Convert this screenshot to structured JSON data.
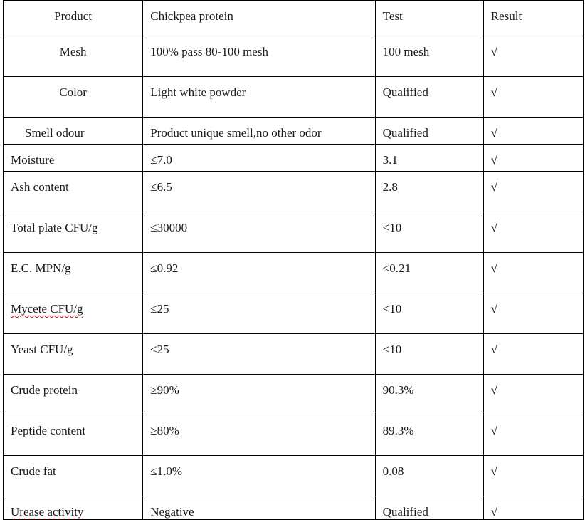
{
  "table": {
    "headers": [
      "Product",
      "Chickpea protein",
      "Test",
      "Result"
    ],
    "rows": [
      {
        "item": "Mesh",
        "spec": "100% pass 80-100 mesh",
        "test": "100 mesh",
        "result": "√"
      },
      {
        "item": "Color",
        "spec": "Light white powder",
        "test": "Qualified",
        "result": "√"
      },
      {
        "item": "Smell odour",
        "spec": "Product unique smell,no other odor",
        "test": "Qualified",
        "result": "√"
      },
      {
        "item": "Moisture",
        "spec": "≤7.0",
        "test": "3.1",
        "result": "√"
      },
      {
        "item": "Ash content",
        "spec": "≤6.5",
        "test": "2.8",
        "result": "√"
      },
      {
        "item": "Total plate CFU/g",
        "spec": "≤30000",
        "test": "<10",
        "result": "√"
      },
      {
        "item": "E.C. MPN/g",
        "spec": "≤0.92",
        "test": "<0.21",
        "result": "√"
      },
      {
        "item": "Mycete CFU/g",
        "spec": "≤25",
        "test": "<10",
        "result": "√"
      },
      {
        "item": "Yeast CFU/g",
        "spec": "≤25",
        "test": "<10",
        "result": "√"
      },
      {
        "item": "Crude protein",
        "spec": "≥90%",
        "test": "90.3%",
        "result": "√"
      },
      {
        "item": "Peptide content",
        "spec": "≥80%",
        "test": "89.3%",
        "result": "√"
      },
      {
        "item": "Crude fat",
        "spec": "≤1.0%",
        "test": "0.08",
        "result": "√"
      },
      {
        "item": "Urease activity",
        "spec": "Negative",
        "test": "Qualified",
        "result": "√"
      }
    ]
  }
}
